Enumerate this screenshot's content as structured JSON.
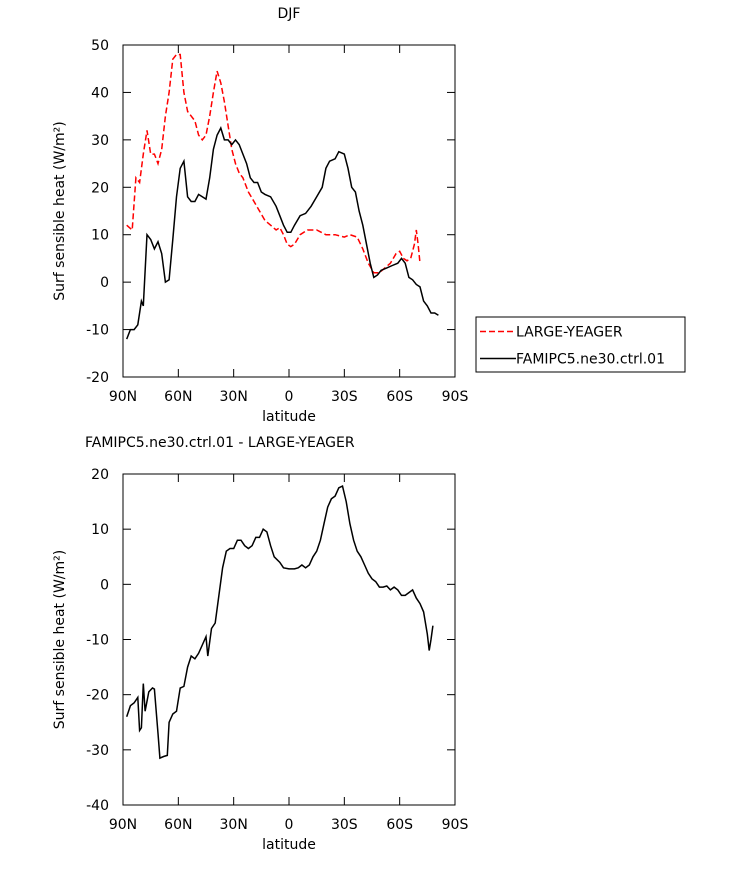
{
  "chart_data": [
    {
      "type": "line",
      "title": "DJF",
      "xlabel": "latitude",
      "ylabel": "Surf sensible heat (W/m²)",
      "xlim": [
        90,
        -90
      ],
      "ylim": [
        -20,
        50
      ],
      "xticks": [
        {
          "value": 90,
          "label": "90N"
        },
        {
          "value": 60,
          "label": "60N"
        },
        {
          "value": 30,
          "label": "30N"
        },
        0,
        {
          "value": -30,
          "label": "30S"
        },
        {
          "value": -60,
          "label": "60S"
        },
        {
          "value": -90,
          "label": "90S"
        }
      ],
      "yticks": [
        -20,
        -10,
        0,
        10,
        20,
        30,
        40,
        50
      ],
      "legend": "outside-right",
      "series": [
        {
          "name": "LARGE-YEAGER",
          "color": "#ff0000",
          "dash": true,
          "x": [
            88,
            85,
            83,
            81,
            79,
            77,
            75,
            73,
            71,
            69,
            67,
            65,
            63,
            61,
            59,
            57,
            55,
            53,
            51,
            49,
            47,
            45,
            43,
            41,
            39,
            37,
            35,
            33,
            31,
            29,
            27,
            25,
            22,
            19,
            16,
            13,
            10,
            7,
            5,
            3,
            1,
            -1,
            -3,
            -6,
            -10,
            -15,
            -20,
            -25,
            -30,
            -33,
            -37,
            -40,
            -43,
            -46,
            -49,
            -52,
            -55,
            -58,
            -60,
            -62,
            -64,
            -66,
            -68,
            -69,
            -70,
            -71
          ],
          "values": [
            12,
            11,
            22,
            21,
            27,
            32,
            27,
            27,
            25,
            28,
            35,
            40,
            47,
            48,
            48,
            40,
            36,
            35,
            34,
            31,
            30,
            31,
            35,
            40,
            44.5,
            42,
            38,
            33,
            28,
            25,
            23,
            22,
            19,
            17,
            15,
            13,
            12,
            11,
            11.5,
            10,
            8,
            7.5,
            8,
            10,
            11,
            11,
            10,
            10,
            9.5,
            10,
            9.5,
            7,
            4,
            2,
            2,
            3,
            4,
            6,
            6.5,
            5,
            4.5,
            5,
            8,
            11,
            8,
            4
          ]
        },
        {
          "name": "FAMIPC5.ne30.ctrl.01",
          "color": "#000000",
          "dash": false,
          "x": [
            88,
            86,
            84,
            82,
            80,
            79,
            77,
            75,
            73,
            71,
            69,
            67,
            65,
            63,
            61,
            59,
            57,
            55,
            53,
            51,
            49,
            47,
            45,
            43,
            41,
            39,
            37,
            35,
            33,
            31,
            29,
            27,
            25,
            23,
            21,
            19,
            17,
            15,
            13,
            10,
            7,
            5,
            3,
            1,
            -1,
            -3,
            -6,
            -9,
            -12,
            -15,
            -18,
            -20,
            -22,
            -25,
            -27,
            -30,
            -32,
            -34,
            -36,
            -38,
            -40,
            -42,
            -44,
            -46,
            -48,
            -50,
            -53,
            -56,
            -59,
            -61,
            -63,
            -65,
            -67,
            -69,
            -71,
            -73,
            -75,
            -77,
            -79,
            -81
          ],
          "values": [
            -12,
            -10,
            -10,
            -9,
            -4,
            -5,
            10,
            9,
            7,
            8.5,
            6,
            0,
            0.5,
            9,
            18,
            24,
            25.5,
            18,
            17,
            17,
            18.5,
            18,
            17.5,
            22,
            28,
            31,
            32.5,
            30,
            30,
            29,
            30,
            29,
            27,
            25,
            22,
            21,
            21,
            19,
            18.5,
            18,
            16,
            14,
            12,
            10.5,
            10.5,
            12,
            14,
            14.5,
            16,
            18,
            20,
            24,
            25.5,
            26,
            27.5,
            27,
            24,
            20,
            19,
            15,
            12,
            8,
            4,
            1,
            1.5,
            2.5,
            3,
            3.5,
            4,
            5,
            4,
            1,
            0.5,
            -0.5,
            -1,
            -4,
            -5,
            -6.5,
            -6.5,
            -7
          ]
        }
      ]
    },
    {
      "type": "line",
      "title": "FAMIPC5.ne30.ctrl.01 - LARGE-YEAGER",
      "xlabel": "latitude",
      "ylabel": "Surf sensible heat (W/m²)",
      "xlim": [
        90,
        -90
      ],
      "ylim": [
        -40,
        20
      ],
      "xticks": [
        {
          "value": 90,
          "label": "90N"
        },
        {
          "value": 60,
          "label": "60N"
        },
        {
          "value": 30,
          "label": "30N"
        },
        0,
        {
          "value": -30,
          "label": "30S"
        },
        {
          "value": -60,
          "label": "60S"
        },
        {
          "value": -90,
          "label": "90S"
        }
      ],
      "yticks": [
        -40,
        -30,
        -20,
        -10,
        0,
        10,
        20
      ],
      "series": [
        {
          "color": "#000000",
          "dash": false,
          "x": [
            88,
            86,
            84,
            82,
            81,
            80,
            79,
            78,
            76,
            74,
            73,
            71,
            70,
            68,
            66,
            65,
            63,
            61,
            59,
            57,
            55,
            53,
            51,
            49,
            47,
            45,
            44,
            42,
            40,
            38,
            36,
            34,
            32,
            30,
            28,
            26,
            24,
            22,
            20,
            18,
            16,
            14,
            12,
            10,
            8,
            5,
            3,
            0,
            -3,
            -5,
            -7,
            -9,
            -11,
            -13,
            -15,
            -17,
            -19,
            -21,
            -23,
            -25,
            -27,
            -29,
            -31,
            -33,
            -35,
            -37,
            -39,
            -41,
            -43,
            -45,
            -47,
            -49,
            -51,
            -53,
            -55,
            -57,
            -59,
            -61,
            -63,
            -65,
            -67,
            -69,
            -71,
            -73,
            -75,
            -76,
            -77,
            -78
          ],
          "values": [
            -24,
            -22,
            -21.5,
            -20.5,
            -26.5,
            -26,
            -18,
            -23,
            -19.5,
            -18.8,
            -19,
            -27,
            -31.5,
            -31.2,
            -31,
            -25,
            -23.5,
            -23,
            -18.8,
            -18.5,
            -15,
            -13,
            -13.5,
            -12.5,
            -11,
            -9.5,
            -13,
            -8,
            -7,
            -2,
            3,
            6,
            6.5,
            6.5,
            8,
            8,
            7,
            6.5,
            7,
            8.5,
            8.5,
            10,
            9.5,
            7,
            5,
            4,
            3,
            2.8,
            2.8,
            3,
            3.5,
            3,
            3.5,
            5,
            6,
            8,
            11,
            14,
            15.5,
            16,
            17.5,
            17.8,
            15,
            11,
            8,
            6,
            5,
            3.5,
            2,
            1,
            0.5,
            -0.5,
            -0.5,
            -0.3,
            -1,
            -0.5,
            -1,
            -2,
            -2,
            -1.5,
            -1,
            -2.5,
            -3.5,
            -5,
            -9,
            -12,
            -10,
            -7.5
          ]
        }
      ]
    }
  ]
}
